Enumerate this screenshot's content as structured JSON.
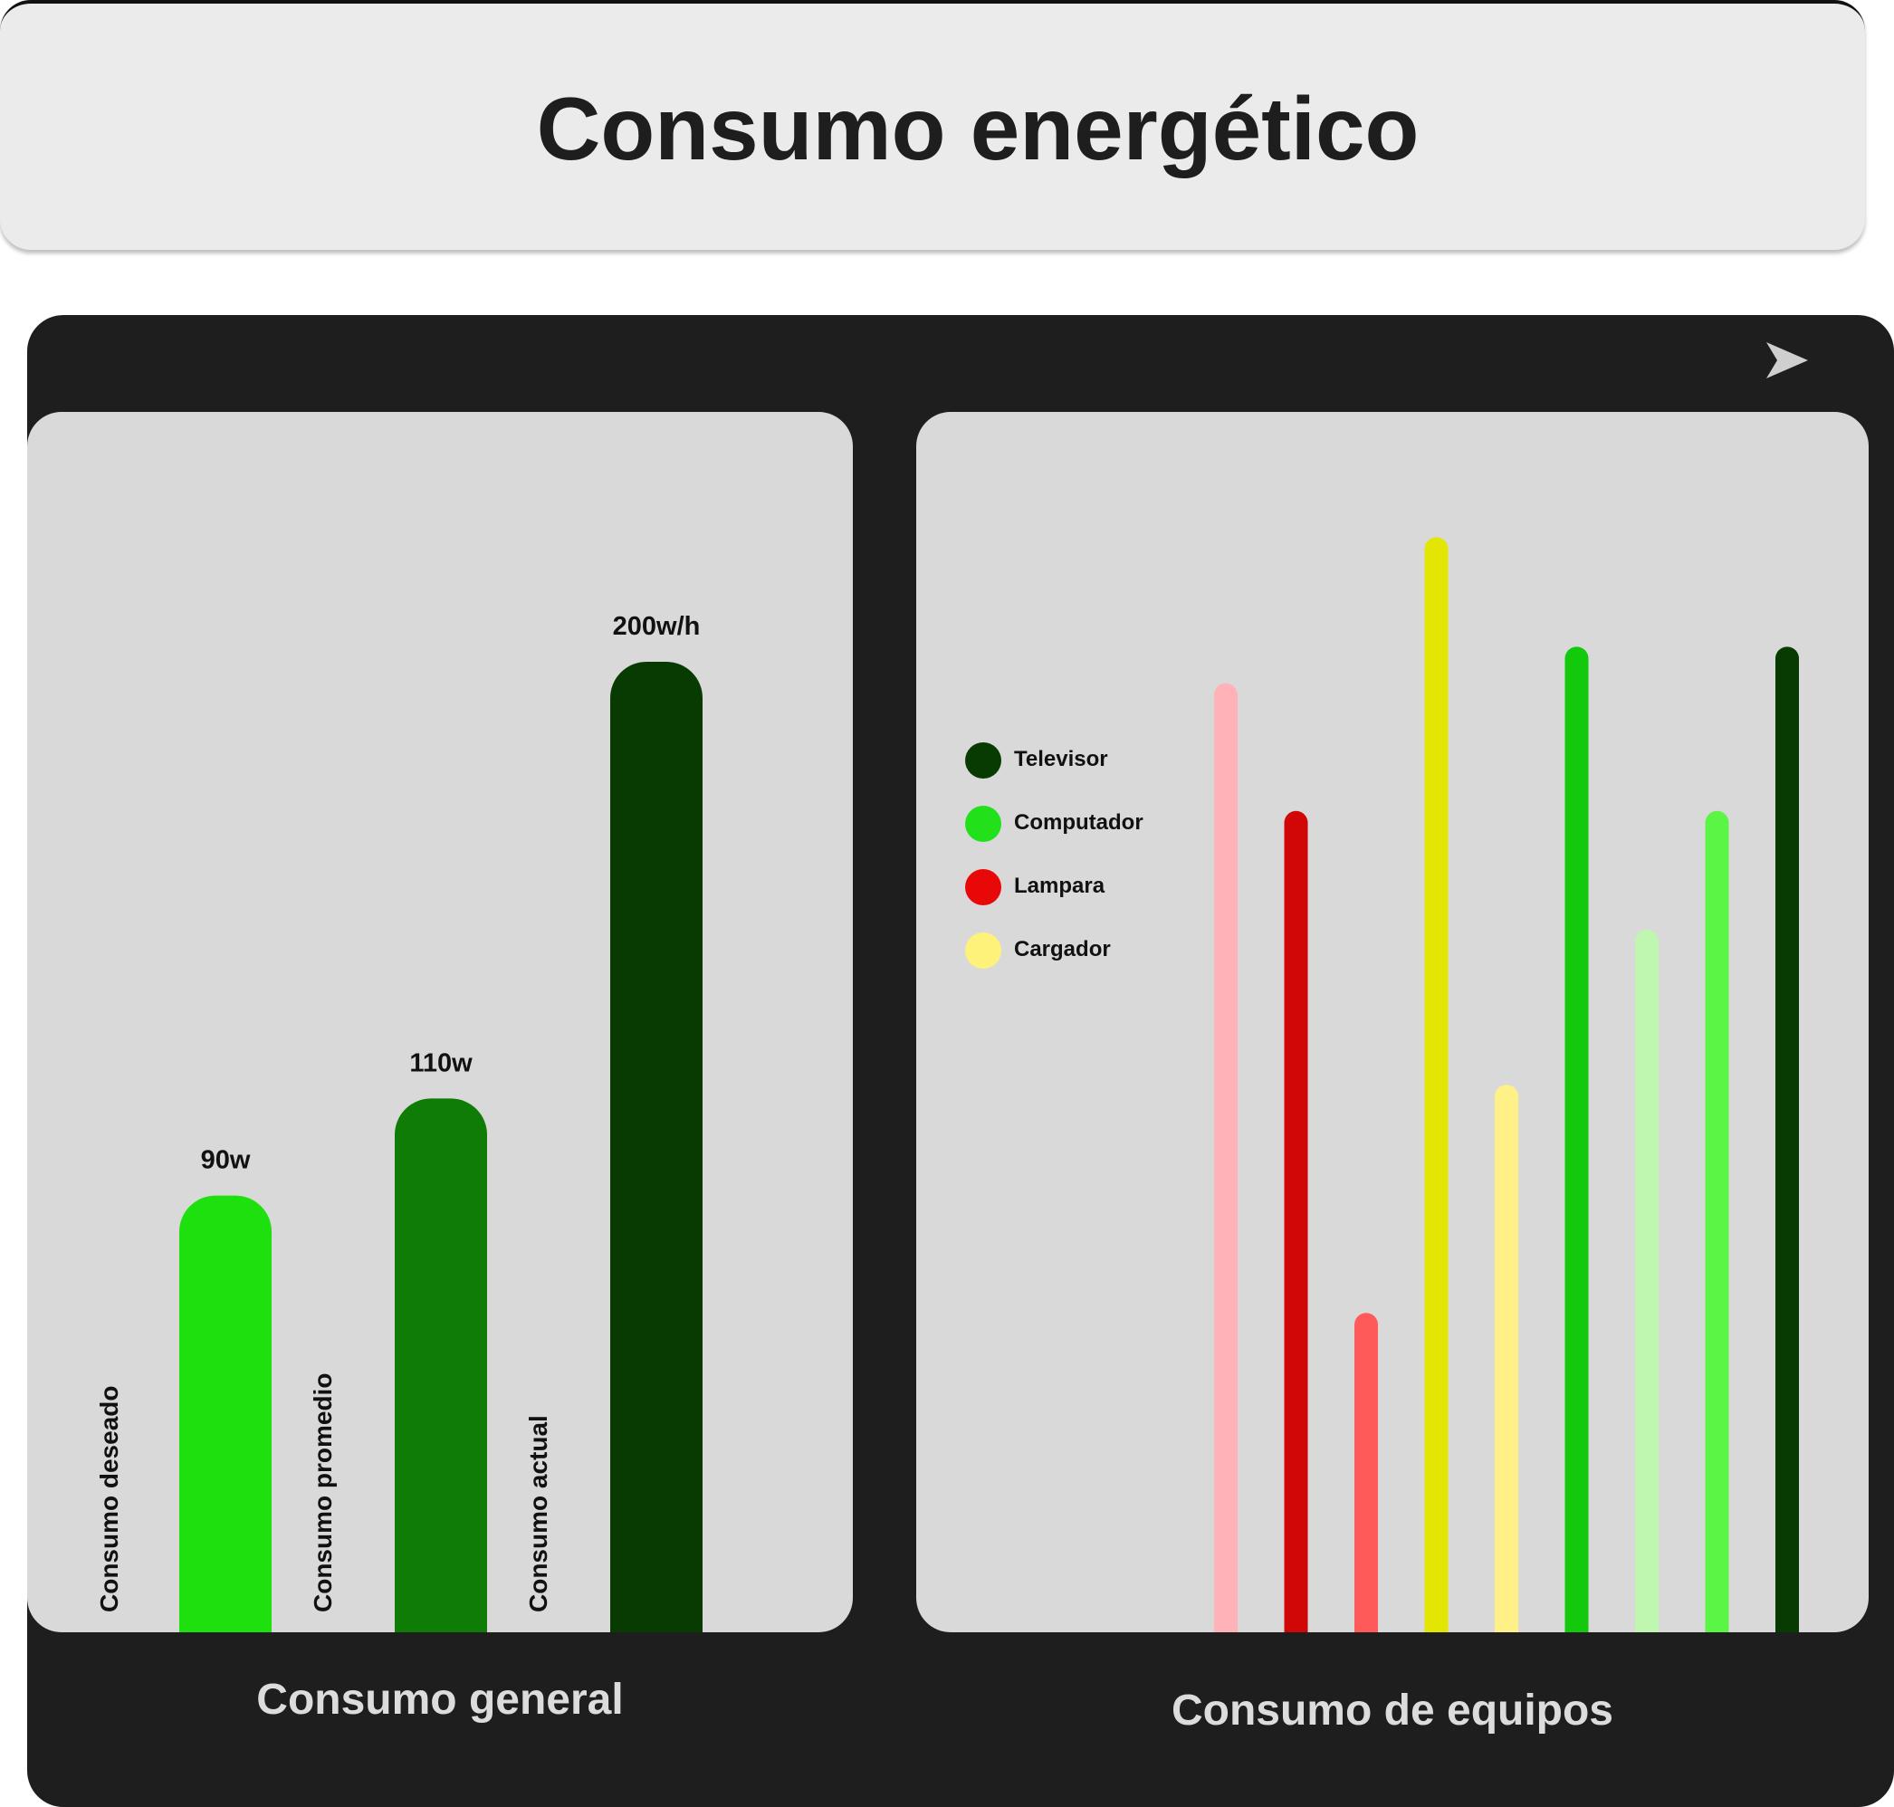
{
  "header": {
    "title": "Consumo energético"
  },
  "toolbar": {
    "send_icon": "send-icon"
  },
  "general": {
    "caption": "Consumo general",
    "chart_data": {
      "type": "bar",
      "categories": [
        "Consumo deseado",
        "Consumo promedio",
        "Consumo actual"
      ],
      "values": [
        90,
        110,
        200
      ],
      "value_labels": [
        "90w",
        "110w",
        "200w/h"
      ],
      "colors": [
        "#1de00e",
        "#0f7d05",
        "#073b02"
      ],
      "ylim": [
        0,
        250
      ]
    }
  },
  "equipos": {
    "caption": "Consumo de equipos",
    "legend": [
      {
        "label": "Televisor",
        "color": "#073b02"
      },
      {
        "label": "Computador",
        "color": "#22e01a"
      },
      {
        "label": "Lampara",
        "color": "#e80808"
      },
      {
        "label": "Cargador",
        "color": "#fff27a"
      }
    ],
    "chart_data": {
      "type": "bar",
      "values": [
        104,
        90,
        35,
        120,
        60,
        108,
        77,
        90,
        108
      ],
      "colors": [
        "#ffb3b8",
        "#d10606",
        "#ff5a5a",
        "#e3e603",
        "#fff088",
        "#12c90c",
        "#bff7b0",
        "#5bf546",
        "#073b02"
      ],
      "ylim": [
        0,
        125
      ]
    }
  }
}
